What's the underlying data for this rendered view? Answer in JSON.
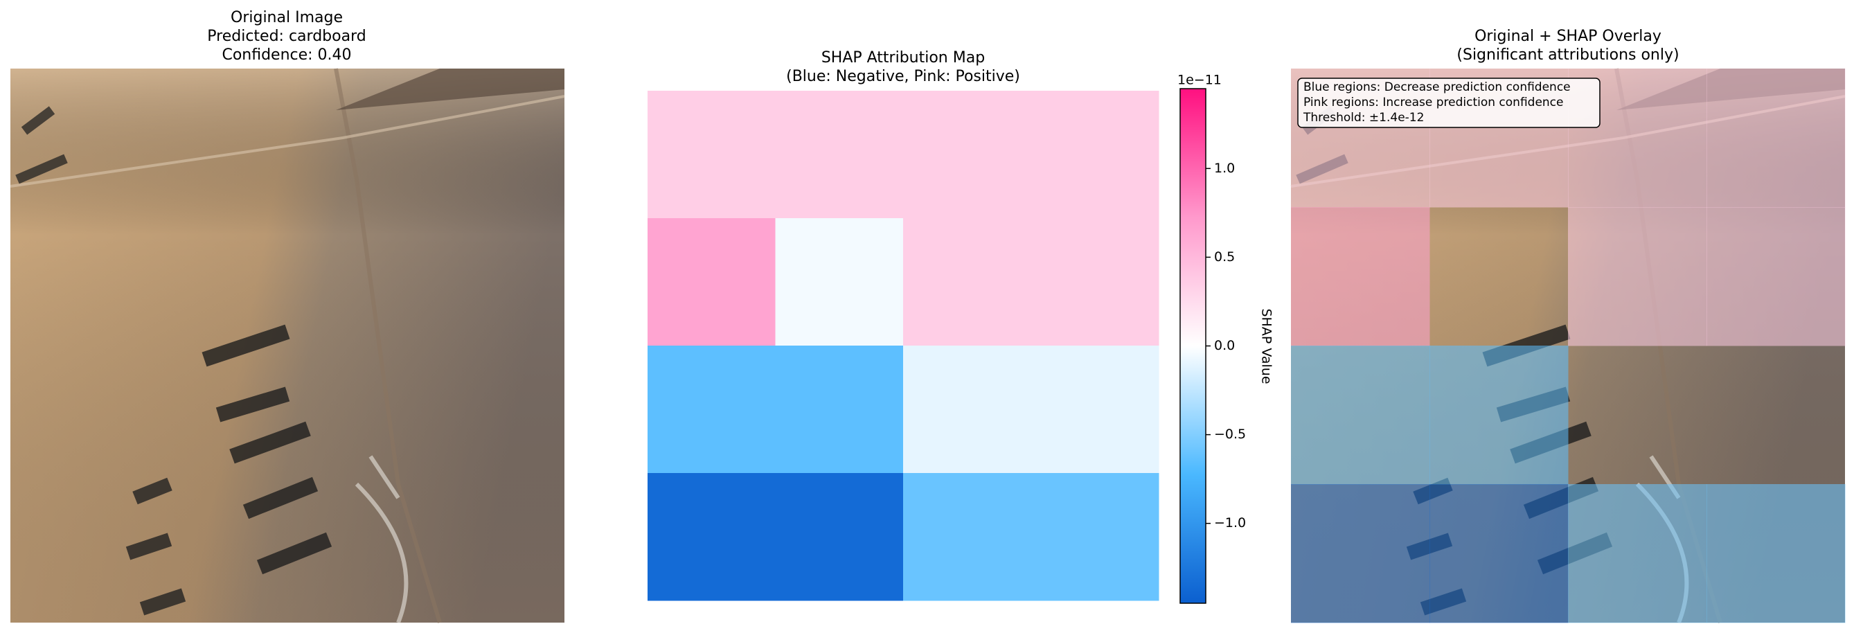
{
  "chart_data": [
    {
      "type": "image",
      "title": [
        "Original Image",
        "Predicted: cardboard",
        "Confidence: 0.40"
      ]
    },
    {
      "type": "heatmap",
      "title": [
        "SHAP Attribution Map",
        "(Blue: Negative, Pink: Positive)"
      ],
      "values": [
        [
          0.35,
          0.35,
          0.35,
          0.35
        ],
        [
          0.65,
          -0.05,
          0.35,
          0.35
        ],
        [
          -0.65,
          -0.65,
          -0.1,
          -0.1
        ],
        [
          -1.35,
          -1.35,
          -0.6,
          -0.6
        ]
      ],
      "colormap": [
        "#0b5fcf",
        "#4ab8ff",
        "#ffffff",
        "#ff99cc",
        "#ff1080"
      ],
      "clim": [
        -1.45,
        1.45
      ],
      "colorbar": {
        "label": "SHAP Value",
        "offset_label": "1e−11",
        "ticks": [
          {
            "value": -1,
            "label": "−1.0"
          },
          {
            "value": -0.5,
            "label": "−0.5"
          },
          {
            "value": 0,
            "label": "0.0"
          },
          {
            "value": 0.5,
            "label": "0.5"
          },
          {
            "value": 1,
            "label": "1.0"
          }
        ]
      }
    },
    {
      "type": "overlay",
      "title": [
        "Original + SHAP Overlay",
        "(Significant attributions only)"
      ],
      "annotation": [
        "Blue regions: Decrease prediction confidence",
        "Pink regions: Increase prediction confidence",
        "Threshold: ±1.4e-12"
      ],
      "threshold": 0.14
    }
  ]
}
